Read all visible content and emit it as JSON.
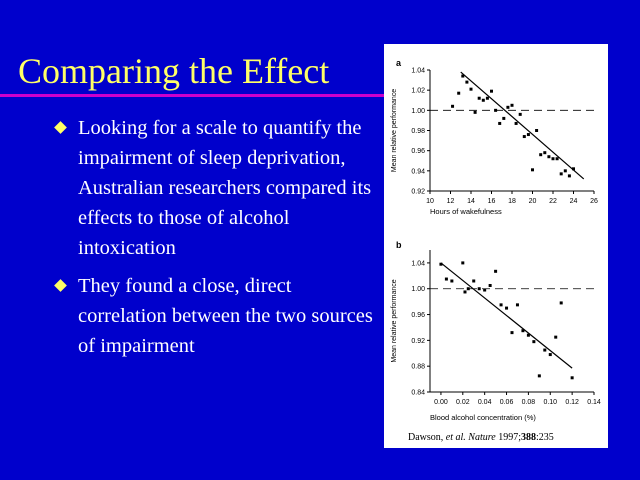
{
  "slide": {
    "title": "Comparing the Effect",
    "accent_color": "#FFFF66",
    "rule_color": "#CC00CC",
    "background": "#0000CC",
    "bullets": [
      "Looking for a scale to quantify the impairment of sleep deprivation, Australian researchers compared its effects to those of alcohol intoxication",
      "They found a close, direct correlation between the two sources of impairment"
    ]
  },
  "citation": {
    "author": "Dawson, ",
    "etal": "et al.",
    "journal": "Nature",
    "year": " 1997;",
    "volume": "388",
    "pages": ":235"
  },
  "chart_data": [
    {
      "type": "scatter",
      "panel_label": "a",
      "xlabel": "Hours of wakefulness",
      "ylabel": "Mean relative performance",
      "xlim": [
        10,
        26
      ],
      "ylim": [
        0.92,
        1.04
      ],
      "xticks": [
        10,
        12,
        14,
        16,
        18,
        20,
        22,
        24,
        26
      ],
      "yticks": [
        0.92,
        0.94,
        0.96,
        0.98,
        1.0,
        1.02,
        1.04
      ],
      "reference_line": 1.0,
      "fit": [
        [
          13,
          1.038
        ],
        [
          25,
          0.932
        ]
      ],
      "x": [
        12.2,
        12.8,
        13.2,
        13.6,
        14.0,
        14.4,
        14.8,
        15.2,
        15.6,
        16.0,
        16.4,
        16.8,
        17.2,
        17.6,
        18.0,
        18.4,
        18.8,
        19.2,
        19.6,
        20.0,
        20.4,
        20.8,
        21.2,
        21.6,
        22.0,
        22.4,
        22.8,
        23.2,
        23.6,
        24.0
      ],
      "y": [
        1.004,
        1.017,
        1.034,
        1.028,
        1.021,
        0.998,
        1.012,
        1.01,
        1.012,
        1.019,
        1.0,
        0.987,
        0.992,
        1.003,
        1.005,
        0.987,
        0.996,
        0.974,
        0.976,
        0.941,
        0.98,
        0.956,
        0.958,
        0.954,
        0.952,
        0.952,
        0.937,
        0.94,
        0.935,
        0.942
      ]
    },
    {
      "type": "scatter",
      "panel_label": "b",
      "xlabel": "Blood alcohol concentration (%)",
      "ylabel": "Mean relative performance",
      "xlim": [
        -0.01,
        0.14
      ],
      "ylim": [
        0.84,
        1.06
      ],
      "xticks": [
        "0.00",
        "0.02",
        "0.04",
        "0.06",
        "0.08",
        "0.10",
        "0.12",
        "0.14"
      ],
      "yticks": [
        "0.84",
        "0.88",
        "0.92",
        "0.96",
        "1.00",
        "1.04"
      ],
      "reference_line": 1.0,
      "fit": [
        [
          0.0,
          1.04
        ],
        [
          0.12,
          0.877
        ]
      ],
      "x": [
        0.0,
        0.005,
        0.01,
        0.02,
        0.022,
        0.025,
        0.03,
        0.035,
        0.04,
        0.045,
        0.05,
        0.055,
        0.06,
        0.065,
        0.07,
        0.075,
        0.08,
        0.085,
        0.09,
        0.095,
        0.1,
        0.105,
        0.11,
        0.12
      ],
      "y": [
        1.038,
        1.015,
        1.012,
        1.04,
        0.995,
        1.0,
        1.012,
        1.0,
        0.998,
        1.005,
        1.027,
        0.975,
        0.97,
        0.932,
        0.975,
        0.935,
        0.928,
        0.918,
        0.865,
        0.905,
        0.898,
        0.925,
        0.978,
        0.862
      ]
    }
  ]
}
